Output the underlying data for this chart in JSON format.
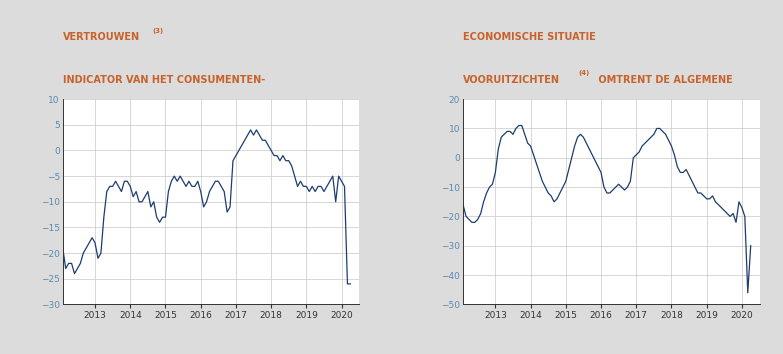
{
  "title1": "INDICATOR VAN HET CONSUMENTENVERTROUWEN-\nVERTROUWENⁿ³⁾",
  "title1_text": "INDICATOR VAN HET CONSUMENTENVERTROUWEN-\nVERTROUWENⁿ³⁾",
  "title1_parts": [
    "INDICATOR VAN HET CONSUMENTENVERTROUWEN-",
    "VERTROUWEN"
  ],
  "title1_sup": "(3)",
  "title2_parts": [
    "VOORUITZICHTEN"
  ],
  "title2_sup": "(4)",
  "title2_rest": " OMTRENT DE ALGEMENE\nECONOMISCHE SITUATIE",
  "line_color": "#1c3d6e",
  "bg_color": "#dcdcdc",
  "plot_bg": "#ffffff",
  "title_color": "#c8622a",
  "grid_color": "#c8c8c8",
  "tick_color": "#5a8ab0",
  "spine_color": "#333333",
  "ylim1": [
    -30,
    10
  ],
  "yticks1": [
    -30,
    -25,
    -20,
    -15,
    -10,
    -5,
    0,
    5,
    10
  ],
  "ylim2": [
    -50,
    20
  ],
  "yticks2": [
    -50,
    -40,
    -30,
    -20,
    -10,
    0,
    10,
    20
  ],
  "years": [
    2013,
    2014,
    2015,
    2016,
    2017,
    2018,
    2019,
    2020
  ],
  "chart1": [
    -17,
    -19,
    -23,
    -22,
    -22,
    -24,
    -23,
    -22,
    -20,
    -19,
    -18,
    -17,
    -18,
    -21,
    -20,
    -13,
    -8,
    -7,
    -7,
    -6,
    -7,
    -8,
    -6,
    -6,
    -7,
    -9,
    -8,
    -10,
    -10,
    -9,
    -8,
    -11,
    -10,
    -13,
    -14,
    -13,
    -13,
    -8,
    -6,
    -5,
    -6,
    -5,
    -6,
    -7,
    -6,
    -7,
    -7,
    -6,
    -8,
    -11,
    -10,
    -8,
    -7,
    -6,
    -6,
    -7,
    -8,
    -12,
    -11,
    -2,
    -1,
    0,
    1,
    2,
    3,
    4,
    3,
    4,
    3,
    2,
    2,
    1,
    0,
    -1,
    -1,
    -2,
    -1,
    -2,
    -2,
    -3,
    -5,
    -7,
    -6,
    -7,
    -7,
    -8,
    -7,
    -8,
    -7,
    -7,
    -8,
    -7,
    -6,
    -5,
    -10,
    -5,
    -6,
    -7,
    -26,
    -26
  ],
  "chart2": [
    -12,
    -16,
    -20,
    -21,
    -22,
    -22,
    -21,
    -19,
    -15,
    -12,
    -10,
    -9,
    -5,
    3,
    7,
    8,
    9,
    9,
    8,
    10,
    11,
    11,
    8,
    5,
    4,
    1,
    -2,
    -5,
    -8,
    -10,
    -12,
    -13,
    -15,
    -14,
    -12,
    -10,
    -8,
    -4,
    0,
    4,
    7,
    8,
    7,
    5,
    3,
    1,
    -1,
    -3,
    -5,
    -10,
    -12,
    -12,
    -11,
    -10,
    -9,
    -10,
    -11,
    -10,
    -8,
    0,
    1,
    2,
    4,
    5,
    6,
    7,
    8,
    10,
    10,
    9,
    8,
    6,
    4,
    1,
    -3,
    -5,
    -5,
    -4,
    -6,
    -8,
    -10,
    -12,
    -12,
    -13,
    -14,
    -14,
    -13,
    -15,
    -16,
    -17,
    -18,
    -19,
    -20,
    -19,
    -22,
    -15,
    -17,
    -20,
    -46,
    -30
  ]
}
